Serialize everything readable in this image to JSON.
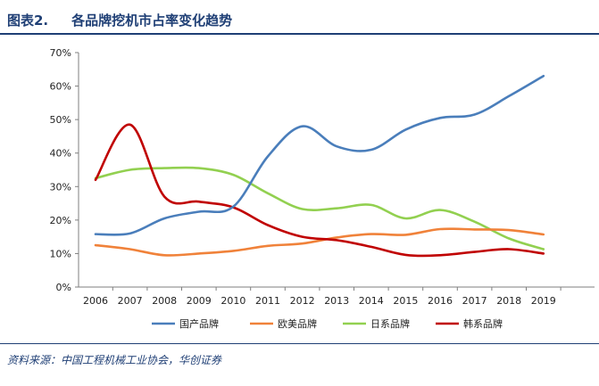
{
  "figure": {
    "number": "图表2.",
    "title": "各品牌挖机市占率变化趋势"
  },
  "source": "资料来源：中国工程机械工业协会，华创证券",
  "chart_data": {
    "type": "line",
    "title": "各品牌挖机市占率变化趋势",
    "xlabel": "",
    "ylabel": "",
    "x": [
      "2006",
      "2007",
      "2008",
      "2009",
      "2010",
      "2011",
      "2012",
      "2013",
      "2014",
      "2015",
      "2016",
      "2017",
      "2018",
      "2019"
    ],
    "ylim": [
      0,
      70
    ],
    "yticks": [
      0,
      10,
      20,
      30,
      40,
      50,
      60,
      70
    ],
    "ytick_labels": [
      "0%",
      "10%",
      "20%",
      "30%",
      "40%",
      "50%",
      "60%",
      "70%"
    ],
    "grid": false,
    "legend_position": "bottom",
    "series": [
      {
        "name": "国产品牌",
        "color": "#4a7ebb",
        "values": [
          15.8,
          16,
          20.5,
          22.5,
          24,
          39,
          48,
          42,
          41,
          47,
          50.5,
          51.5,
          57,
          63
        ]
      },
      {
        "name": "欧美品牌",
        "color": "#f0823a",
        "values": [
          12.5,
          11.3,
          9.5,
          10,
          10.8,
          12.3,
          13,
          14.8,
          15.8,
          15.6,
          17.3,
          17.2,
          17,
          15.7
        ]
      },
      {
        "name": "日系品牌",
        "color": "#92d050",
        "values": [
          32.5,
          35,
          35.5,
          35.5,
          33.5,
          28,
          23.3,
          23.5,
          24.5,
          20.5,
          23,
          19.5,
          14.5,
          11.3
        ]
      },
      {
        "name": "韩系品牌",
        "color": "#c00000",
        "values": [
          32,
          48.5,
          27,
          25.5,
          23.8,
          18.5,
          15,
          14,
          12,
          9.6,
          9.5,
          10.5,
          11.3,
          10
        ]
      }
    ]
  }
}
